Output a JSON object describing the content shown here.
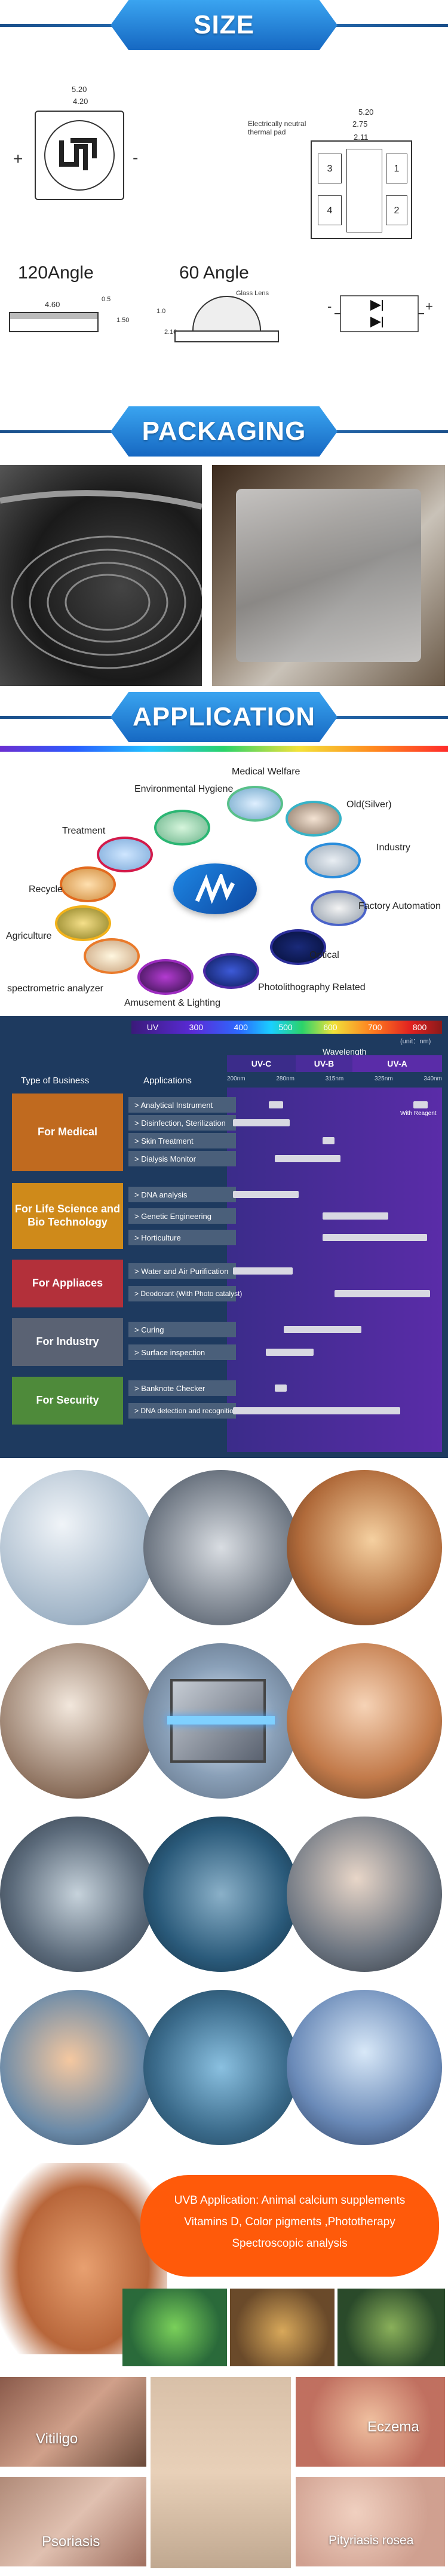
{
  "sections": {
    "size": "SIZE",
    "packaging": "PACKAGING",
    "application": "APPLICATION"
  },
  "size": {
    "top_left": {
      "w1": "5.20",
      "w2": "4.20",
      "plus": "+",
      "minus": "-"
    },
    "top_right": {
      "w1": "5.20",
      "w2": "2.75",
      "w3": "2.11",
      "note": "Electrically neutral thermal pad",
      "pads": [
        "3",
        "4",
        "1",
        "2"
      ]
    },
    "angle120": "120Angle",
    "angle60": "60 Angle",
    "side_dims": {
      "w": "4.60",
      "h1": "0.5",
      "h2": "1.50"
    },
    "lens": {
      "label": "Glass Lens",
      "d1": "1.0",
      "d2": "2.10"
    },
    "circuit": {
      "minus": "-",
      "plus": "+"
    }
  },
  "application_wheel": {
    "center_logo": "M",
    "nodes": [
      {
        "label": "Environmental Hygiene"
      },
      {
        "label": "Medical Welfare"
      },
      {
        "label": "Treatment"
      },
      {
        "label": "Old(Silver)"
      },
      {
        "label": "Industry"
      },
      {
        "label": "Recycle"
      },
      {
        "label": "Factory Automation"
      },
      {
        "label": "Agriculture"
      },
      {
        "label": "Optical"
      },
      {
        "label": "spectrometric analyzer"
      },
      {
        "label": "Amusement & Lighting"
      },
      {
        "label": "Photolithography Related"
      }
    ]
  },
  "wavelength": {
    "scale": [
      "UV",
      "300",
      "400",
      "500",
      "600",
      "700",
      "800"
    ],
    "unit": "(unit：nm)",
    "axis_title": "Wavelength",
    "type_header": "Type of Business",
    "app_header": "Applications",
    "bands": [
      "UV-C",
      "UV-B",
      "UV-A"
    ],
    "band_ticks": [
      "200nm",
      "280nm",
      "315nm",
      "325nm",
      "340nm"
    ],
    "with_reagent": "With Reagent",
    "rows": [
      {
        "category": "For Medical",
        "apps": [
          "> Analytical Instrument",
          "> Disinfection, Sterilization",
          "> Skin Treatment",
          "> Dialysis Monitor"
        ]
      },
      {
        "category": "For Life Science and Bio Technology",
        "apps": [
          "> DNA analysis",
          "> Genetic Engineering",
          "> Horticulture"
        ]
      },
      {
        "category": "For Appliaces",
        "apps": [
          "> Water and Air Purification",
          "> Deodorant (With Photo catalyst)"
        ]
      },
      {
        "category": "For Industry",
        "apps": [
          "> Curing",
          "> Surface inspection"
        ]
      },
      {
        "category": "For Security",
        "apps": [
          "> Banknote Checker",
          "> DNA detection and recognition"
        ]
      }
    ]
  },
  "uvb_box": {
    "line1": "UVB Application:  Animal calcium supplements",
    "line2": "Vitamins D, Color pigments ,Phototherapy",
    "line3": "Spectroscopic analysis"
  },
  "diseases": [
    "Vitiligo",
    "Eczema",
    "Psoriasis",
    "Pityriasis rosea"
  ]
}
